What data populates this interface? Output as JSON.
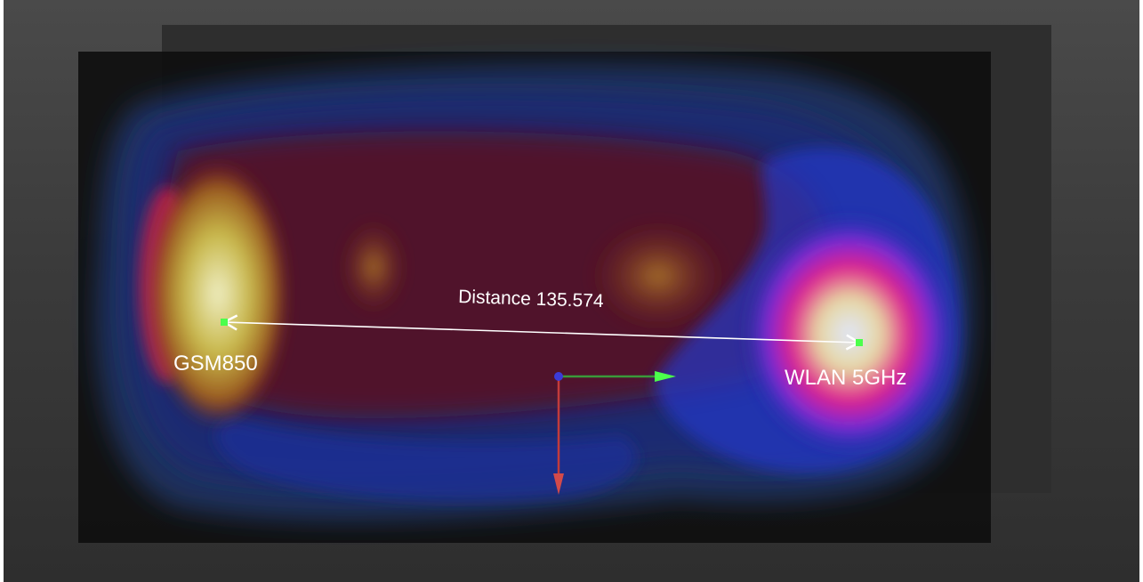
{
  "scene": {
    "labels": {
      "source_left": "GSM850",
      "source_right": "WLAN 5GHz",
      "measurement": "Distance 135.574"
    },
    "colors": {
      "accent_green": "#4cff4c",
      "axis_x": "#3a9a3a",
      "axis_y": "#c23b3b",
      "origin": "#3b3bd8"
    },
    "icons": [
      "transform-gizmo-icon",
      "measure-arrow-icon",
      "point-marker-icon"
    ]
  }
}
